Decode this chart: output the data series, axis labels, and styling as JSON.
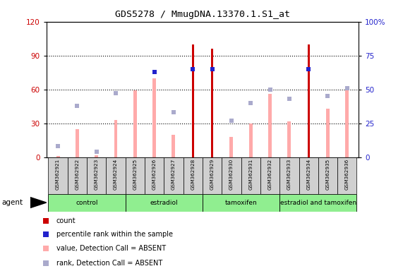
{
  "title": "GDS5278 / MmugDNA.13370.1.S1_at",
  "samples": [
    "GSM362921",
    "GSM362922",
    "GSM362923",
    "GSM362924",
    "GSM362925",
    "GSM362926",
    "GSM362927",
    "GSM362928",
    "GSM362929",
    "GSM362930",
    "GSM362931",
    "GSM362932",
    "GSM362933",
    "GSM362934",
    "GSM362935",
    "GSM362936"
  ],
  "count_values": [
    0,
    0,
    0,
    0,
    0,
    0,
    0,
    100,
    96,
    0,
    0,
    0,
    0,
    100,
    0,
    0
  ],
  "rank_values": [
    0,
    0,
    0,
    0,
    0,
    63,
    0,
    65,
    65,
    0,
    0,
    0,
    0,
    65,
    0,
    0
  ],
  "value_absent": [
    1,
    25,
    2,
    33,
    59,
    70,
    20,
    0,
    0,
    18,
    30,
    56,
    32,
    0,
    43,
    63
  ],
  "rank_absent": [
    8,
    38,
    4,
    47,
    0,
    0,
    33,
    0,
    0,
    27,
    40,
    50,
    43,
    0,
    45,
    51
  ],
  "group_names": [
    "control",
    "estradiol",
    "tamoxifen",
    "estradiol and tamoxifen"
  ],
  "group_starts": [
    0,
    4,
    8,
    12
  ],
  "group_ends": [
    3,
    7,
    11,
    15
  ],
  "ylim_left": [
    0,
    120
  ],
  "left_ticks": [
    0,
    30,
    60,
    90,
    120
  ],
  "right_ticks": [
    0,
    25,
    50,
    75,
    100
  ],
  "color_count": "#cc0000",
  "color_rank": "#2222cc",
  "color_value_absent": "#ffaaaa",
  "color_rank_absent": "#aaaacc",
  "bg_color": "#ffffff",
  "bar_bg_color": "#d0d0d0",
  "group_color": "#90ee90"
}
